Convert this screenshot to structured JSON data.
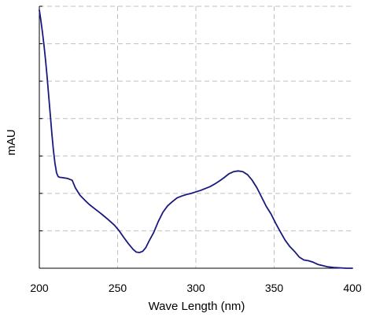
{
  "chart_data": {
    "type": "line",
    "title": "",
    "xlabel": "Wave Length (nm)",
    "ylabel": "mAU",
    "xlim": [
      200,
      400
    ],
    "ylim": [
      0,
      7
    ],
    "x_ticks": [
      "200",
      "250",
      "300",
      "350",
      "400"
    ],
    "y_ticks": [],
    "grid": true,
    "legend": "none",
    "line_color": "#1a1a7e",
    "grid_color": "#c0c0c0",
    "series": [
      {
        "x": [
          200,
          201,
          202,
          203,
          204,
          205,
          206,
          207,
          208,
          209,
          210,
          211,
          212,
          213,
          215,
          218,
          221,
          223,
          226,
          229,
          232,
          236,
          240,
          244,
          248,
          251,
          254,
          257,
          260,
          262,
          264,
          266,
          268,
          270,
          273,
          276,
          279,
          282,
          285,
          288,
          291,
          294,
          297,
          300,
          303,
          306,
          309,
          312,
          315,
          318,
          321,
          324,
          327,
          330,
          333,
          336,
          339,
          342,
          345,
          348,
          351,
          354,
          357,
          360,
          363,
          366,
          369,
          372,
          375,
          378,
          381,
          384,
          388,
          392,
          396,
          400
        ],
        "y": [
          6.9,
          6.62,
          6.3,
          5.95,
          5.55,
          5.1,
          4.6,
          4.1,
          3.6,
          3.15,
          2.8,
          2.55,
          2.45,
          2.43,
          2.42,
          2.4,
          2.35,
          2.15,
          1.95,
          1.82,
          1.7,
          1.57,
          1.44,
          1.3,
          1.15,
          1.0,
          0.82,
          0.65,
          0.5,
          0.43,
          0.42,
          0.45,
          0.55,
          0.72,
          0.95,
          1.25,
          1.5,
          1.67,
          1.78,
          1.88,
          1.93,
          1.97,
          2.0,
          2.04,
          2.08,
          2.13,
          2.18,
          2.25,
          2.33,
          2.42,
          2.52,
          2.58,
          2.6,
          2.58,
          2.5,
          2.35,
          2.15,
          1.9,
          1.65,
          1.45,
          1.2,
          0.97,
          0.75,
          0.58,
          0.45,
          0.3,
          0.22,
          0.2,
          0.16,
          0.1,
          0.07,
          0.04,
          0.02,
          0.01,
          0.0,
          0.0
        ]
      }
    ]
  }
}
